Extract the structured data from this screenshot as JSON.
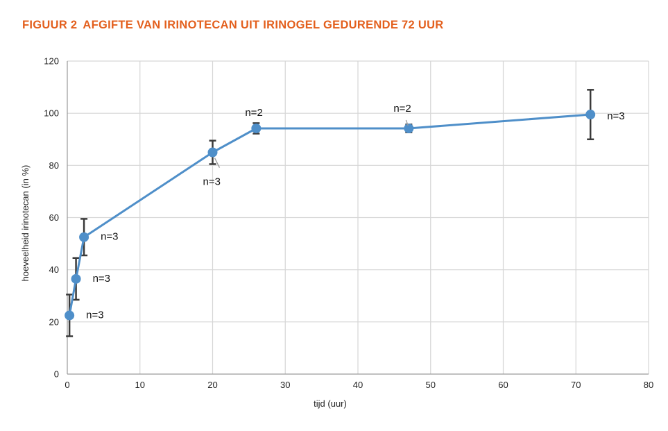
{
  "figure": {
    "number": "FIGUUR 2",
    "title": "AFGIFTE VAN IRINOTECAN UIT IRINOGEL GEDURENDE 72 UUR"
  },
  "chart_data": {
    "type": "line",
    "title": "",
    "xlabel": "tijd (uur)",
    "ylabel": "hoeveelheid irinotecan (in %)",
    "xlim": [
      0,
      80
    ],
    "ylim": [
      0,
      120
    ],
    "x_ticks": [
      0,
      10,
      20,
      30,
      40,
      50,
      60,
      70,
      80
    ],
    "y_ticks": [
      0,
      20,
      40,
      60,
      80,
      100,
      120
    ],
    "grid": true,
    "legend": "none",
    "line_color": "#4f8fc9",
    "marker_color": "#4f8fc9",
    "errorbar_color": "#3a3a3a",
    "series": [
      {
        "points": [
          {
            "x": 0.3,
            "y": 22.5,
            "err": 8.0,
            "n": "n=3"
          },
          {
            "x": 1.2,
            "y": 36.5,
            "err": 8.0,
            "n": "n=3"
          },
          {
            "x": 2.3,
            "y": 52.5,
            "err": 7.0,
            "n": "n=3"
          },
          {
            "x": 20.0,
            "y": 85.0,
            "err": 4.5,
            "n": "n=3"
          },
          {
            "x": 26.0,
            "y": 94.2,
            "err": 2.0,
            "n": "n=2"
          },
          {
            "x": 47.0,
            "y": 94.2,
            "err": 1.5,
            "n": "n=2"
          },
          {
            "x": 72.0,
            "y": 99.5,
            "err": 9.5,
            "n": "n=3"
          }
        ]
      }
    ]
  }
}
